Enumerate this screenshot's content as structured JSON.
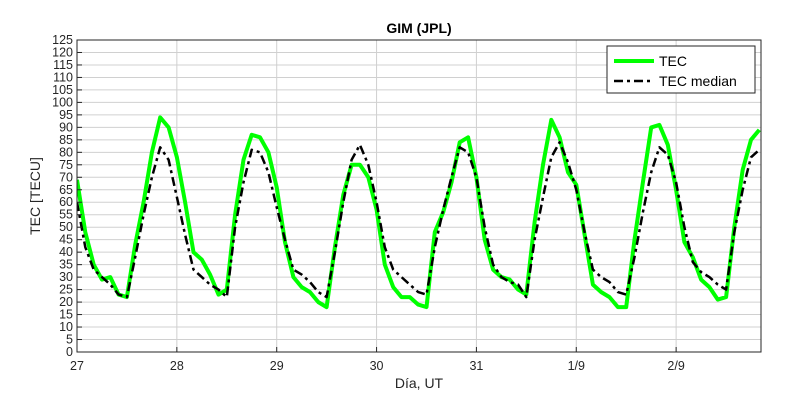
{
  "chart_data": {
    "type": "line",
    "title": "GIM (JPL)",
    "xlabel": "Día, UT",
    "ylabel": "TEC [TECU]",
    "xlim": [
      0,
      6.85
    ],
    "ylim": [
      0,
      125
    ],
    "yticks": [
      0,
      5,
      10,
      15,
      20,
      25,
      30,
      35,
      40,
      45,
      50,
      55,
      60,
      65,
      70,
      75,
      80,
      85,
      90,
      95,
      100,
      105,
      110,
      115,
      120,
      125
    ],
    "xticks": [
      {
        "value": 0,
        "label": "27"
      },
      {
        "value": 1,
        "label": "28"
      },
      {
        "value": 2,
        "label": "29"
      },
      {
        "value": 3,
        "label": "30"
      },
      {
        "value": 4,
        "label": "31"
      },
      {
        "value": 5,
        "label": "1/9"
      },
      {
        "value": 6,
        "label": "2/9"
      }
    ],
    "grid": true,
    "legend_position": "top-right",
    "series": [
      {
        "name": "TEC",
        "color": "#00ff00",
        "style": "solid",
        "x": [
          0,
          0.083,
          0.167,
          0.25,
          0.333,
          0.417,
          0.5,
          0.583,
          0.667,
          0.75,
          0.833,
          0.917,
          1.0,
          1.083,
          1.167,
          1.25,
          1.333,
          1.417,
          1.5,
          1.583,
          1.667,
          1.75,
          1.833,
          1.917,
          2.0,
          2.083,
          2.167,
          2.25,
          2.333,
          2.417,
          2.5,
          2.583,
          2.667,
          2.75,
          2.833,
          2.917,
          3.0,
          3.083,
          3.167,
          3.25,
          3.333,
          3.417,
          3.5,
          3.583,
          3.667,
          3.75,
          3.833,
          3.917,
          4.0,
          4.083,
          4.167,
          4.25,
          4.333,
          4.417,
          4.5,
          4.583,
          4.667,
          4.75,
          4.833,
          4.917,
          5.0,
          5.083,
          5.167,
          5.25,
          5.333,
          5.417,
          5.5,
          5.583,
          5.667,
          5.75,
          5.833,
          5.917,
          6.0,
          6.083,
          6.167,
          6.25,
          6.333,
          6.417,
          6.5,
          6.583,
          6.667,
          6.75,
          6.833
        ],
        "y": [
          69,
          48,
          35,
          29,
          30,
          23,
          22,
          43,
          60,
          80,
          94,
          90,
          78,
          60,
          40,
          37,
          31,
          23,
          25,
          55,
          77,
          87,
          86,
          80,
          66,
          44,
          30,
          26,
          24,
          20,
          18,
          42,
          63,
          75,
          75,
          70,
          57,
          35,
          26,
          22,
          22,
          19,
          18,
          48,
          56,
          68,
          84,
          86,
          70,
          45,
          33,
          30,
          29,
          25,
          23,
          52,
          75,
          93,
          86,
          72,
          67,
          47,
          27,
          24,
          22,
          18,
          18,
          45,
          68,
          90,
          91,
          83,
          65,
          44,
          38,
          29,
          26,
          21,
          22,
          50,
          73,
          85,
          89
        ]
      },
      {
        "name": "TEC median",
        "color": "#000000",
        "style": "dash-dot",
        "x": [
          0,
          0.083,
          0.167,
          0.25,
          0.333,
          0.417,
          0.5,
          0.583,
          0.667,
          0.75,
          0.833,
          0.917,
          1.0,
          1.083,
          1.167,
          1.25,
          1.333,
          1.417,
          1.5,
          1.583,
          1.667,
          1.75,
          1.833,
          1.917,
          2.0,
          2.083,
          2.167,
          2.25,
          2.333,
          2.417,
          2.5,
          2.583,
          2.667,
          2.75,
          2.833,
          2.917,
          3.0,
          3.083,
          3.167,
          3.25,
          3.333,
          3.417,
          3.5,
          3.583,
          3.667,
          3.75,
          3.833,
          3.917,
          4.0,
          4.083,
          4.167,
          4.25,
          4.333,
          4.417,
          4.5,
          4.583,
          4.667,
          4.75,
          4.833,
          4.917,
          5.0,
          5.083,
          5.167,
          5.25,
          5.333,
          5.417,
          5.5,
          5.583,
          5.667,
          5.75,
          5.833,
          5.917,
          6.0,
          6.083,
          6.167,
          6.25,
          6.333,
          6.417,
          6.5,
          6.583,
          6.667,
          6.75,
          6.833
        ],
        "y": [
          60,
          42,
          33,
          30,
          27,
          23,
          22,
          38,
          55,
          70,
          82,
          77,
          62,
          47,
          33,
          30,
          27,
          25,
          22,
          50,
          68,
          81,
          80,
          72,
          58,
          45,
          33,
          31,
          28,
          24,
          22,
          40,
          60,
          77,
          83,
          75,
          60,
          42,
          33,
          30,
          27,
          24,
          23,
          42,
          57,
          70,
          82,
          80,
          70,
          50,
          35,
          30,
          28,
          27,
          22,
          45,
          62,
          78,
          84,
          76,
          65,
          48,
          33,
          30,
          28,
          24,
          23,
          38,
          56,
          72,
          82,
          79,
          68,
          50,
          36,
          32,
          30,
          27,
          25,
          48,
          65,
          78,
          81
        ]
      }
    ]
  }
}
